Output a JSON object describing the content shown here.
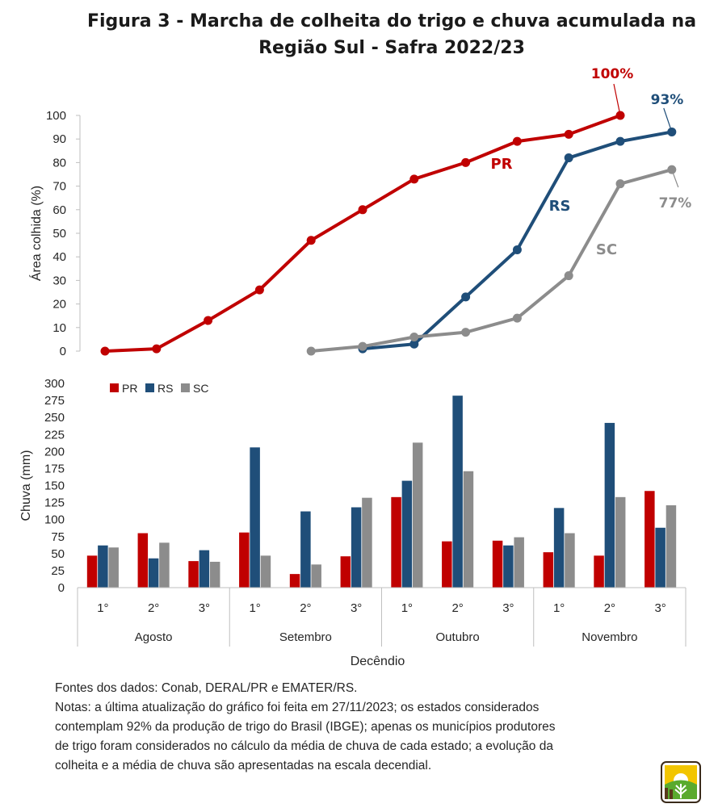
{
  "title": {
    "line1": "Figura 3 - Marcha de colheita do trigo e chuva acumulada na",
    "line2": "Região Sul - Safra 2022/23"
  },
  "colors": {
    "PR": "#C00000",
    "RS": "#1F4E79",
    "SC": "#8C8C8C"
  },
  "chart_data": [
    {
      "type": "line",
      "ylabel": "Área colhida (%)",
      "ylim": [
        0,
        100
      ],
      "yticks": [
        0,
        10,
        20,
        30,
        40,
        50,
        60,
        70,
        80,
        90,
        100
      ],
      "x": [
        "Agosto 1°",
        "Agosto 2°",
        "Agosto 3°",
        "Setembro 1°",
        "Setembro 2°",
        "Setembro 3°",
        "Outubro 1°",
        "Outubro 2°",
        "Outubro 3°",
        "Novembro 1°",
        "Novembro 2°",
        "Novembro 3°"
      ],
      "series": [
        {
          "name": "PR",
          "values": [
            0,
            1,
            13,
            26,
            47,
            60,
            73,
            80,
            89,
            92,
            100,
            null
          ]
        },
        {
          "name": "RS",
          "values": [
            null,
            null,
            null,
            null,
            null,
            1,
            3,
            23,
            43,
            82,
            89,
            93
          ]
        },
        {
          "name": "SC",
          "values": [
            null,
            null,
            null,
            null,
            0,
            2,
            6,
            8,
            14,
            32,
            71,
            77
          ]
        }
      ],
      "annotations": {
        "PR_end": "100%",
        "RS_end": "93%",
        "SC_end": "77%"
      },
      "grid": false
    },
    {
      "type": "bar",
      "ylabel": "Chuva (mm)",
      "xlabel": "Decêndio",
      "ylim": [
        0,
        300
      ],
      "yticks": [
        0,
        25,
        50,
        75,
        100,
        125,
        150,
        175,
        200,
        225,
        250,
        275,
        300
      ],
      "months": [
        "Agosto",
        "Setembro",
        "Outubro",
        "Novembro"
      ],
      "decendios": [
        "1°",
        "2°",
        "3°"
      ],
      "legend": "top-left",
      "series": [
        {
          "name": "PR",
          "values": [
            47,
            80,
            39,
            81,
            20,
            46,
            133,
            68,
            69,
            52,
            47,
            142
          ]
        },
        {
          "name": "RS",
          "values": [
            62,
            43,
            55,
            206,
            112,
            118,
            157,
            282,
            62,
            117,
            242,
            88
          ]
        },
        {
          "name": "SC",
          "values": [
            59,
            66,
            38,
            47,
            34,
            132,
            213,
            171,
            74,
            80,
            133,
            121
          ]
        }
      ],
      "grid": false
    }
  ],
  "notes": {
    "source": "Fontes dos dados: Conab, DERAL/PR e EMATER/RS.",
    "line1": "Notas: a última atualização do gráfico foi feita em 27/11/2023; os estados considerados",
    "line2": "contemplam 92% da produção de trigo do Brasil (IBGE); apenas os municípios produtores",
    "line3": "de trigo foram considerados no cálculo da média de chuva de cada estado; a evolução da",
    "line4": "colheita e a média de chuva são apresentadas na escala decendial."
  }
}
